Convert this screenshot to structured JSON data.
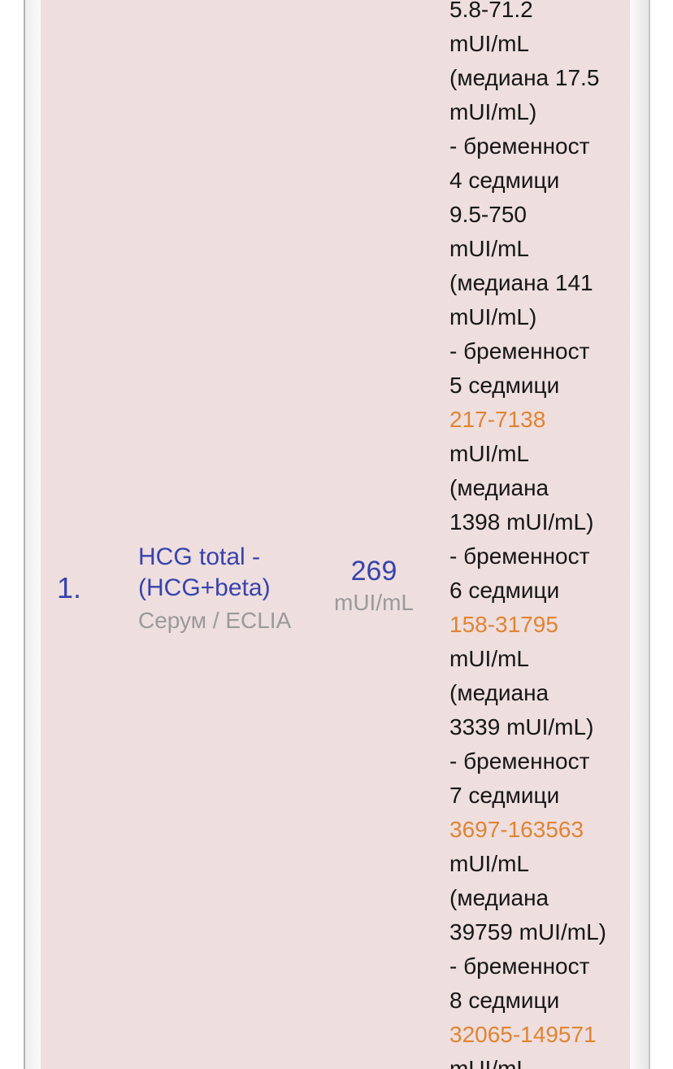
{
  "colors": {
    "accent_blue": "#3743ad",
    "link_orange": "#e08432",
    "text_black": "#161616",
    "muted_gray": "#9a9a9a",
    "row_pink": "#eedede",
    "border_gray": "#b0b0b0"
  },
  "row": {
    "index": "1.",
    "test_name_line1": "HCG total -",
    "test_name_line2": "(HCG+beta)",
    "specimen_method": "Серум / ECLIA",
    "result_value": "269",
    "result_unit": "mUI/mL",
    "reference_lines": [
      {
        "text": "5.8-71.2",
        "style": "text"
      },
      {
        "text": "mUI/mL",
        "style": "text"
      },
      {
        "text": "(медиана 17.5",
        "style": "text"
      },
      {
        "text": "mUI/mL)",
        "style": "text"
      },
      {
        "text": "- бременност",
        "style": "text"
      },
      {
        "text": "4 седмици",
        "style": "text"
      },
      {
        "text": "9.5-750",
        "style": "text"
      },
      {
        "text": "mUI/mL",
        "style": "text"
      },
      {
        "text": "(медиана 141",
        "style": "text"
      },
      {
        "text": "mUI/mL)",
        "style": "text"
      },
      {
        "text": "- бременност",
        "style": "text"
      },
      {
        "text": "5 седмици",
        "style": "text"
      },
      {
        "text": "217-7138",
        "style": "link"
      },
      {
        "text": "mUI/mL",
        "style": "text"
      },
      {
        "text": "(медиана",
        "style": "text"
      },
      {
        "text": "1398 mUI/mL)",
        "style": "text"
      },
      {
        "text": "- бременност",
        "style": "text"
      },
      {
        "text": "6 седмици",
        "style": "text"
      },
      {
        "text": "158-31795",
        "style": "link"
      },
      {
        "text": "mUI/mL",
        "style": "text"
      },
      {
        "text": "(медиана",
        "style": "text"
      },
      {
        "text": "3339 mUI/mL)",
        "style": "text"
      },
      {
        "text": "- бременност",
        "style": "text"
      },
      {
        "text": "7 седмици",
        "style": "text"
      },
      {
        "text": "3697-163563",
        "style": "link"
      },
      {
        "text": "mUI/mL",
        "style": "text"
      },
      {
        "text": "(медиана",
        "style": "text"
      },
      {
        "text": "39759 mUI/mL)",
        "style": "text"
      },
      {
        "text": "- бременност",
        "style": "text"
      },
      {
        "text": "8 седмици",
        "style": "text"
      },
      {
        "text": "32065-149571",
        "style": "link"
      },
      {
        "text": "mUI/mL",
        "style": "text"
      }
    ]
  }
}
